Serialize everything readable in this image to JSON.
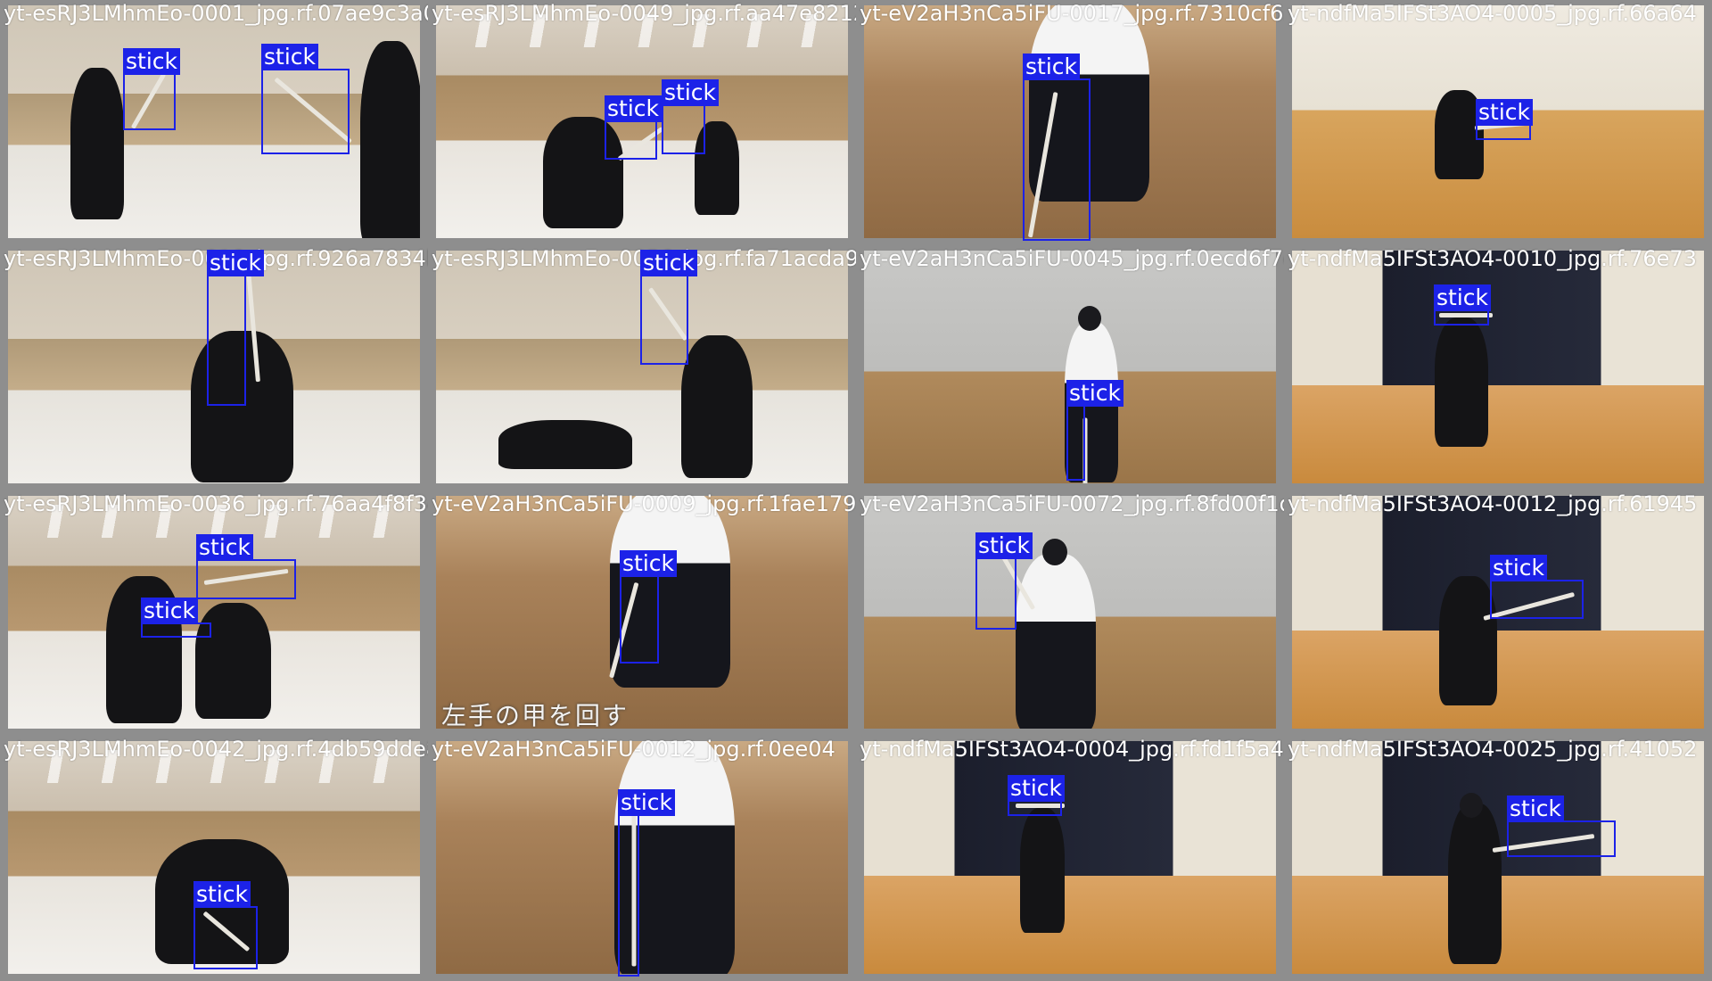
{
  "tiles": [
    {
      "filename": "yt-esRJ3LMhmEo-0001_jpg.rf.07ae9c3a04c2b5",
      "scene": "dojo-mat",
      "labels": [
        "stick",
        "stick"
      ],
      "subtitle": ""
    },
    {
      "filename": "yt-esRJ3LMhmEo-0049_jpg.rf.aa47e821234d0",
      "scene": "dojo-night",
      "labels": [
        "stick",
        "stick"
      ],
      "subtitle": ""
    },
    {
      "filename": "yt-eV2aH3nCa5iFU-0017_jpg.rf.7310cf652851",
      "scene": "wood-floor",
      "labels": [
        "stick"
      ],
      "subtitle": ""
    },
    {
      "filename": "yt-ndfMa5IFSt3AO4-0005_jpg.rf.66a64",
      "scene": "gym",
      "labels": [
        "stick"
      ],
      "subtitle": ""
    },
    {
      "filename": "yt-esRJ3LMhmEo-0018_jpg.rf.926a7834b48",
      "scene": "dojo-mat",
      "labels": [
        "stick"
      ],
      "subtitle": ""
    },
    {
      "filename": "yt-esRJ3LMhmEo-0056_jpg.rf.fa71acda9647",
      "scene": "dojo-mat",
      "labels": [
        "stick"
      ],
      "subtitle": ""
    },
    {
      "filename": "yt-eV2aH3nCa5iFU-0045_jpg.rf.0ecd6f7e21683",
      "scene": "concrete",
      "labels": [
        "stick"
      ],
      "subtitle": ""
    },
    {
      "filename": "yt-ndfMa5IFSt3AO4-0010_jpg.rf.76e73",
      "scene": "gym-dark",
      "labels": [
        "stick"
      ],
      "subtitle": ""
    },
    {
      "filename": "yt-esRJ3LMhmEo-0036_jpg.rf.76aa4f8f34e",
      "scene": "dojo-night",
      "labels": [
        "stick",
        "stick"
      ],
      "subtitle": ""
    },
    {
      "filename": "yt-eV2aH3nCa5iFU-0009_jpg.rf.1fae179",
      "scene": "wood-floor",
      "labels": [
        "stick"
      ],
      "subtitle": "左手の甲を回す"
    },
    {
      "filename": "yt-eV2aH3nCa5iFU-0072_jpg.rf.8fd00f1d2555",
      "scene": "concrete",
      "labels": [
        "stick"
      ],
      "subtitle": ""
    },
    {
      "filename": "yt-ndfMa5IFSt3AO4-0012_jpg.rf.61945",
      "scene": "gym-dark",
      "labels": [
        "stick"
      ],
      "subtitle": ""
    },
    {
      "filename": "yt-esRJ3LMhmEo-0042_jpg.rf.4db59dde848",
      "scene": "dojo-night",
      "labels": [
        "stick"
      ],
      "subtitle": ""
    },
    {
      "filename": "yt-eV2aH3nCa5iFU-0012_jpg.rf.0ee04",
      "scene": "wood-floor",
      "labels": [
        "stick"
      ],
      "subtitle": ""
    },
    {
      "filename": "yt-ndfMa5IFSt3AO4-0004_jpg.rf.fd1f5a452",
      "scene": "gym-dark",
      "labels": [
        "stick"
      ],
      "subtitle": ""
    },
    {
      "filename": "yt-ndfMa5IFSt3AO4-0025_jpg.rf.41052",
      "scene": "gym-dark",
      "labels": [
        "stick"
      ],
      "subtitle": ""
    }
  ],
  "colors": {
    "bbox": "#1c22e8",
    "grid_background": "#8e8e8e",
    "label_text": "#ffffff"
  }
}
